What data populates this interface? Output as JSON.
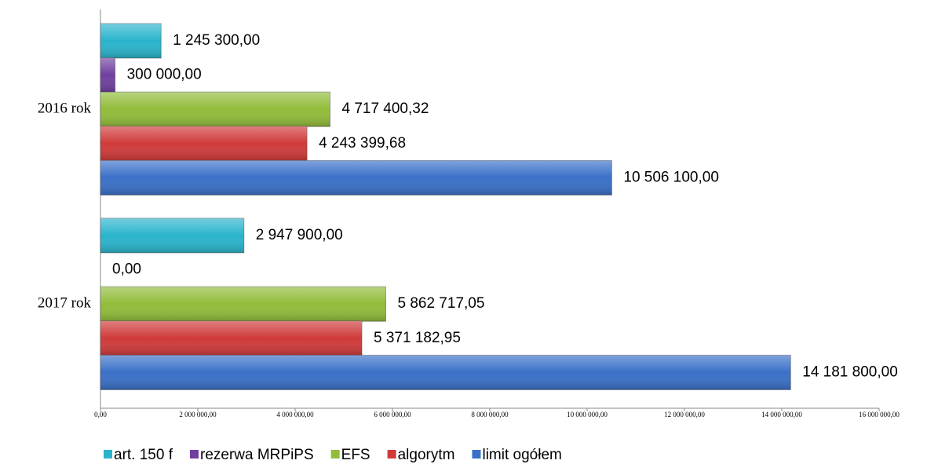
{
  "chart_data": {
    "type": "bar",
    "orientation": "horizontal",
    "categories": [
      "2016 rok",
      "2017 rok"
    ],
    "series": [
      {
        "name": "art. 150 f",
        "color": "#2ab4cc",
        "values": [
          1245300.0,
          2947900.0
        ],
        "value_labels": [
          "1 245 300,00",
          "2 947 900,00"
        ]
      },
      {
        "name": "rezerwa MRPiPS",
        "color": "#7040a0",
        "values": [
          300000.0,
          0.0
        ],
        "value_labels": [
          "300 000,00",
          "0,00"
        ]
      },
      {
        "name": "EFS",
        "color": "#92bc3a",
        "values": [
          4717400.32,
          5862717.05
        ],
        "value_labels": [
          "4 717 400,32",
          "5 862 717,05"
        ]
      },
      {
        "name": "algorytm",
        "color": "#d03a3a",
        "values": [
          4243399.68,
          5371182.95
        ],
        "value_labels": [
          "4 243 399,68",
          "5 371 182,95"
        ]
      },
      {
        "name": "limit ogółem",
        "color": "#3a70c8",
        "values": [
          10506100.0,
          14181800.0
        ],
        "value_labels": [
          "10 506 100,00",
          "14 181 800,00"
        ]
      }
    ],
    "xlim": [
      0,
      16000000
    ],
    "xticks": [
      {
        "value": 0,
        "label": "0,00"
      },
      {
        "value": 2000000,
        "label": "2 000 000,00"
      },
      {
        "value": 4000000,
        "label": "4 000 000,00"
      },
      {
        "value": 6000000,
        "label": "6 000 000,00"
      },
      {
        "value": 8000000,
        "label": "8 000 000,00"
      },
      {
        "value": 10000000,
        "label": "10 000 000,00"
      },
      {
        "value": 12000000,
        "label": "12 000 000,00"
      },
      {
        "value": 14000000,
        "label": "14 000 000,00"
      },
      {
        "value": 16000000,
        "label": "16 000 000,00"
      }
    ],
    "legend": "bottom"
  }
}
